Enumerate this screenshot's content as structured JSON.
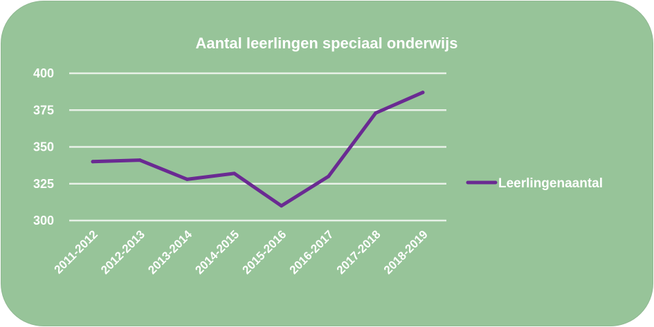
{
  "chart_data": {
    "type": "line",
    "title": "Aantal leerlingen speciaal onderwijs",
    "categories": [
      "2011-2012",
      "2012-2013",
      "2013-2014",
      "2014-2015",
      "2015-2016",
      "2016-2017",
      "2017-2018",
      "2018-2019"
    ],
    "series": [
      {
        "name": "Leerlingenaantal",
        "values": [
          340,
          341,
          328,
          332,
          310,
          330,
          373,
          387
        ],
        "color": "#6a2a92"
      }
    ],
    "ylim": [
      300,
      400
    ],
    "yticks": [
      300,
      325,
      350,
      375,
      400
    ],
    "grid": true,
    "legend_position": "right",
    "xlabel": "",
    "ylabel": ""
  },
  "colors": {
    "background": "#97c499",
    "grid": "#e8f1e8",
    "text": "#ffffff"
  }
}
